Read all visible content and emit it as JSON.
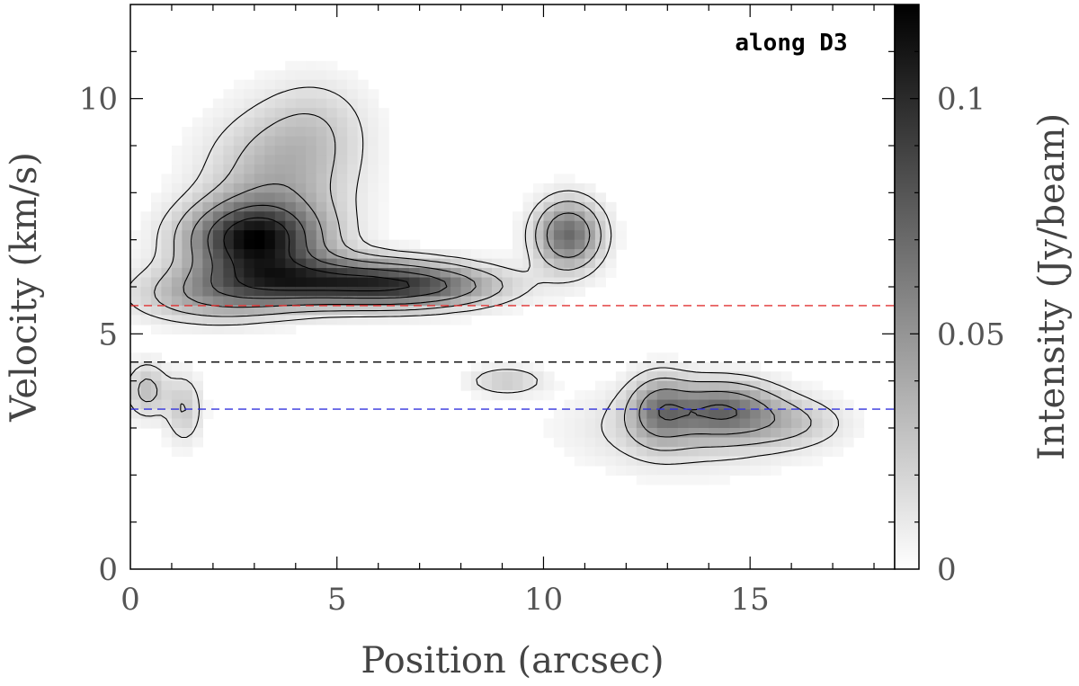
{
  "chart_data": {
    "type": "heatmap",
    "title": "",
    "annotation": "along D3",
    "xlabel": "Position (arcsec)",
    "ylabel": "Velocity (km/s)",
    "colorbar_label": "Intensity (Jy/beam)",
    "xlim": [
      0,
      18.5
    ],
    "ylim": [
      0,
      12
    ],
    "clim": [
      0,
      0.12
    ],
    "x_ticks": [
      0,
      5,
      10,
      15
    ],
    "y_ticks": [
      0,
      5,
      10
    ],
    "colorbar_ticks": [
      {
        "value": 0,
        "label": "0"
      },
      {
        "value": 0.05,
        "label": "0.05"
      },
      {
        "value": 0.1,
        "label": "0.1"
      }
    ],
    "colormap": "gray-reversed",
    "reference_lines": [
      {
        "velocity": 5.6,
        "color": "#e03030",
        "style": "dashed"
      },
      {
        "velocity": 4.4,
        "color": "#000000",
        "style": "dashed"
      },
      {
        "velocity": 3.4,
        "color": "#3333dd",
        "style": "dashed"
      }
    ],
    "emission_components": [
      {
        "x": 3.0,
        "v": 7.0,
        "sx": 1.1,
        "sv": 0.55,
        "amp": 0.11
      },
      {
        "x": 4.6,
        "v": 6.1,
        "sx": 2.0,
        "sv": 0.35,
        "amp": 0.085
      },
      {
        "x": 3.6,
        "v": 8.4,
        "sx": 1.2,
        "sv": 0.9,
        "amp": 0.035
      },
      {
        "x": 4.5,
        "v": 9.5,
        "sx": 0.9,
        "sv": 0.7,
        "amp": 0.015
      },
      {
        "x": 7.0,
        "v": 6.0,
        "sx": 1.4,
        "sv": 0.3,
        "amp": 0.05
      },
      {
        "x": 10.6,
        "v": 7.1,
        "sx": 0.55,
        "sv": 0.5,
        "amp": 0.07
      },
      {
        "x": 2.0,
        "v": 5.7,
        "sx": 1.3,
        "sv": 0.35,
        "amp": 0.03
      },
      {
        "x": 0.4,
        "v": 3.8,
        "sx": 0.35,
        "sv": 0.4,
        "amp": 0.03
      },
      {
        "x": 1.3,
        "v": 3.4,
        "sx": 0.3,
        "sv": 0.5,
        "amp": 0.025
      },
      {
        "x": 9.1,
        "v": 4.0,
        "sx": 0.6,
        "sv": 0.2,
        "amp": 0.025
      },
      {
        "x": 14.3,
        "v": 3.4,
        "sx": 0.9,
        "sv": 0.4,
        "amp": 0.055
      },
      {
        "x": 12.8,
        "v": 3.4,
        "sx": 0.5,
        "sv": 0.5,
        "amp": 0.04
      },
      {
        "x": 13.5,
        "v": 3.0,
        "sx": 1.8,
        "sv": 0.6,
        "amp": 0.022
      },
      {
        "x": 16.0,
        "v": 3.1,
        "sx": 0.9,
        "sv": 0.35,
        "amp": 0.02
      }
    ]
  }
}
